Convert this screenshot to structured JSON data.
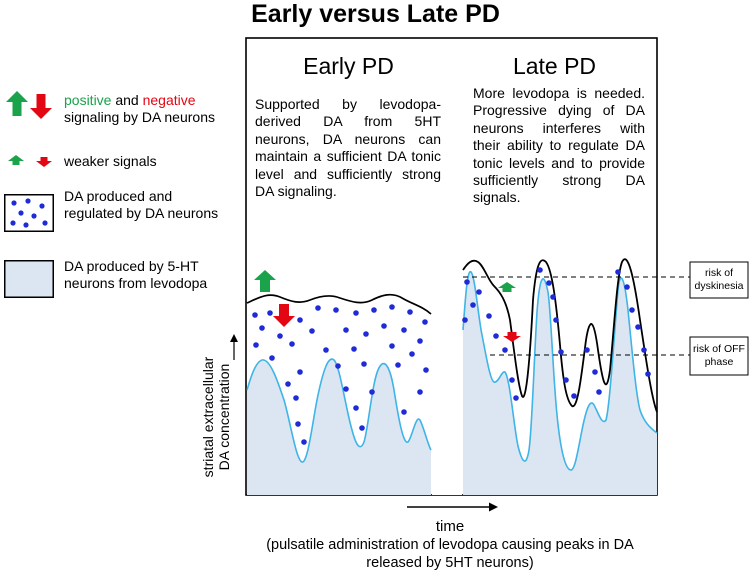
{
  "title": "Early versus Late PD",
  "legend": {
    "signals_positive_word": "positive",
    "signals_and": " and ",
    "signals_negative_word": "negative",
    "signals_rest": "signaling by DA neurons",
    "weaker_signals": "weaker signals",
    "da_neurons": "DA produced and regulated by DA neurons",
    "ht_neurons": "DA produced by 5-HT neurons from levodopa"
  },
  "panels": {
    "early": {
      "heading": "Early PD",
      "description": "Supported by levodopa-derived DA from 5HT neurons, DA neurons can maintain a sufficient DA tonic level and sufficiently strong DA signaling."
    },
    "late": {
      "heading": "Late PD",
      "description": "More levodopa is needed. Progressive dying of DA neurons interferes with their ability to regulate DA tonic levels and to provide sufficiently strong DA signals."
    }
  },
  "thresholds": {
    "dyskinesia": "risk of dyskinesia",
    "off_phase": "risk of OFF phase"
  },
  "axes": {
    "y_label_line1": "striatal extracellular",
    "y_label_line2": "DA concentration",
    "x_label": "time",
    "x_caption": "(pulsatile administration of levodopa causing peaks in DA released by 5HT neurons)"
  },
  "colors": {
    "positive": "#1aa34a",
    "negative": "#e30613",
    "dot": "#1f2bd6",
    "ht_fill": "#dce6f2",
    "ht_line": "#3fb4e6"
  }
}
